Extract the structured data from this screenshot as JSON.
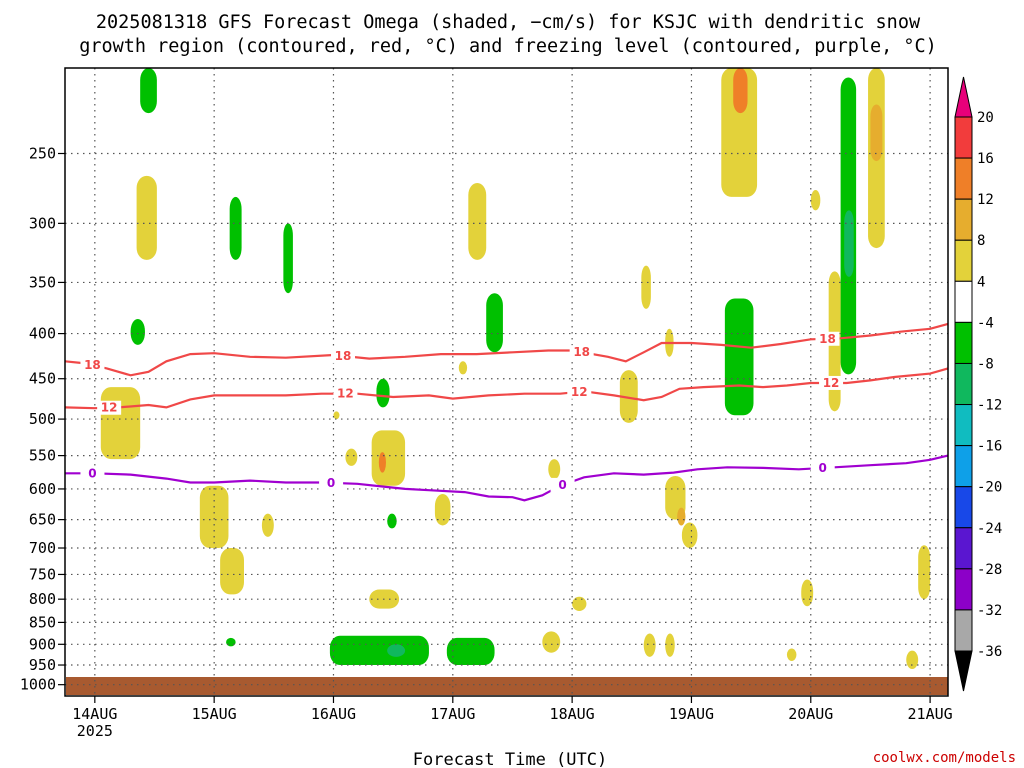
{
  "title_line1": "2025081318 GFS Forecast Omega (shaded, −cm/s) for KSJC with dendritic snow",
  "title_line2": "growth region (contoured, red, °C) and freezing level (contoured, purple, °C)",
  "xlabel": "Forecast Time (UTC)",
  "watermark": "coolwx.com/models",
  "chart_data": {
    "type": "time-height contour",
    "x_ticks": [
      {
        "day": 14,
        "label": "14AUG",
        "sub": "2025"
      },
      {
        "day": 15,
        "label": "15AUG",
        "sub": ""
      },
      {
        "day": 16,
        "label": "16AUG",
        "sub": ""
      },
      {
        "day": 17,
        "label": "17AUG",
        "sub": ""
      },
      {
        "day": 18,
        "label": "18AUG",
        "sub": ""
      },
      {
        "day": 19,
        "label": "19AUG",
        "sub": ""
      },
      {
        "day": 20,
        "label": "20AUG",
        "sub": ""
      },
      {
        "day": 21,
        "label": "21AUG",
        "sub": ""
      }
    ],
    "x_range_days": [
      13.75,
      21.15
    ],
    "y_axis": "pressure (hPa), log scale, inverted",
    "y_range": [
      200,
      1030
    ],
    "y_ticks": [
      250,
      300,
      350,
      400,
      450,
      500,
      550,
      600,
      650,
      700,
      750,
      800,
      850,
      900,
      950,
      1000
    ],
    "grid": true,
    "colorbar": {
      "labels": [
        20,
        16,
        12,
        8,
        4,
        -4,
        -8,
        -12,
        -16,
        -20,
        -24,
        -28,
        -32,
        -36
      ],
      "colors": [
        "#e8007a",
        "#f23c3c",
        "#ef7f28",
        "#e6ad2e",
        "#e3d23a",
        "#ffffff",
        "#00c000",
        "#10b85e",
        "#10bcc0",
        "#0ea0e8",
        "#1848e8",
        "#5a16d0",
        "#8c00c8",
        "#a8a8a8",
        "#000000"
      ]
    },
    "contours": [
      {
        "name": "-18",
        "color": "#f04848",
        "label": "18",
        "points": [
          [
            13.75,
            430
          ],
          [
            13.9,
            432
          ],
          [
            14.1,
            438
          ],
          [
            14.3,
            446
          ],
          [
            14.45,
            442
          ],
          [
            14.6,
            430
          ],
          [
            14.8,
            422
          ],
          [
            15.0,
            421
          ],
          [
            15.3,
            425
          ],
          [
            15.6,
            426
          ],
          [
            16.0,
            423
          ],
          [
            16.3,
            427
          ],
          [
            16.6,
            425
          ],
          [
            16.9,
            422
          ],
          [
            17.2,
            422
          ],
          [
            17.5,
            420
          ],
          [
            17.8,
            418
          ],
          [
            18.0,
            418
          ],
          [
            18.3,
            425
          ],
          [
            18.45,
            430
          ],
          [
            18.6,
            420
          ],
          [
            18.75,
            410
          ],
          [
            19.0,
            410
          ],
          [
            19.25,
            412
          ],
          [
            19.5,
            415
          ],
          [
            19.75,
            411
          ],
          [
            20.0,
            406
          ],
          [
            20.25,
            405
          ],
          [
            20.5,
            402
          ],
          [
            20.75,
            398
          ],
          [
            21.0,
            395
          ],
          [
            21.15,
            390
          ]
        ]
      },
      {
        "name": "-12",
        "color": "#f04848",
        "label": "12",
        "points": [
          [
            13.75,
            485
          ],
          [
            14.0,
            486
          ],
          [
            14.2,
            485
          ],
          [
            14.45,
            482
          ],
          [
            14.6,
            485
          ],
          [
            14.8,
            475
          ],
          [
            15.0,
            470
          ],
          [
            15.3,
            470
          ],
          [
            15.6,
            470
          ],
          [
            15.9,
            468
          ],
          [
            16.2,
            468
          ],
          [
            16.5,
            472
          ],
          [
            16.8,
            470
          ],
          [
            17.0,
            474
          ],
          [
            17.3,
            470
          ],
          [
            17.6,
            468
          ],
          [
            17.9,
            468
          ],
          [
            18.1,
            465
          ],
          [
            18.35,
            470
          ],
          [
            18.6,
            476
          ],
          [
            18.75,
            472
          ],
          [
            18.9,
            462
          ],
          [
            19.1,
            460
          ],
          [
            19.4,
            458
          ],
          [
            19.6,
            460
          ],
          [
            19.8,
            458
          ],
          [
            20.0,
            455
          ],
          [
            20.3,
            455
          ],
          [
            20.5,
            452
          ],
          [
            20.7,
            448
          ],
          [
            21.0,
            444
          ],
          [
            21.15,
            438
          ]
        ]
      },
      {
        "name": "0",
        "color": "#a000d0",
        "label": "0",
        "points": [
          [
            13.75,
            576
          ],
          [
            14.0,
            576
          ],
          [
            14.3,
            578
          ],
          [
            14.6,
            584
          ],
          [
            14.8,
            590
          ],
          [
            15.0,
            590
          ],
          [
            15.3,
            587
          ],
          [
            15.6,
            590
          ],
          [
            15.9,
            590
          ],
          [
            16.2,
            592
          ],
          [
            16.4,
            596
          ],
          [
            16.6,
            600
          ],
          [
            16.8,
            602
          ],
          [
            17.1,
            605
          ],
          [
            17.3,
            612
          ],
          [
            17.5,
            613
          ],
          [
            17.6,
            618
          ],
          [
            17.75,
            610
          ],
          [
            17.9,
            595
          ],
          [
            18.1,
            582
          ],
          [
            18.35,
            576
          ],
          [
            18.6,
            578
          ],
          [
            18.85,
            575
          ],
          [
            19.05,
            570
          ],
          [
            19.3,
            567
          ],
          [
            19.6,
            568
          ],
          [
            19.9,
            570
          ],
          [
            20.2,
            567
          ],
          [
            20.5,
            564
          ],
          [
            20.8,
            561
          ],
          [
            21.0,
            556
          ],
          [
            21.15,
            550
          ]
        ]
      }
    ],
    "label_positions": [
      {
        "series": "-18",
        "days": [
          13.98,
          16.08,
          18.08,
          20.14
        ]
      },
      {
        "series": "-12",
        "days": [
          14.12,
          16.1,
          18.06,
          20.17
        ]
      },
      {
        "series": "0",
        "days": [
          13.98,
          15.98,
          17.92,
          20.1
        ]
      }
    ],
    "shaded_areas": [
      {
        "color": "#00c000",
        "d": [
          14.38,
          14.52
        ],
        "p": [
          200,
          225
        ]
      },
      {
        "color": "#e3d23a",
        "d": [
          14.35,
          14.52
        ],
        "p": [
          265,
          330
        ]
      },
      {
        "color": "#e3d23a",
        "d": [
          14.05,
          14.38
        ],
        "p": [
          460,
          555
        ]
      },
      {
        "color": "#00c000",
        "d": [
          14.3,
          14.42
        ],
        "p": [
          385,
          412
        ]
      },
      {
        "color": "#e3d23a",
        "d": [
          14.88,
          15.12
        ],
        "p": [
          595,
          700
        ]
      },
      {
        "color": "#e3d23a",
        "d": [
          15.05,
          15.25
        ],
        "p": [
          700,
          790
        ]
      },
      {
        "color": "#00c000",
        "d": [
          15.13,
          15.23
        ],
        "p": [
          280,
          330
        ]
      },
      {
        "color": "#00c000",
        "d": [
          15.58,
          15.66
        ],
        "p": [
          300,
          360
        ]
      },
      {
        "color": "#e3d23a",
        "d": [
          15.4,
          15.5
        ],
        "p": [
          640,
          680
        ]
      },
      {
        "color": "#00c000",
        "d": [
          15.1,
          15.18
        ],
        "p": [
          885,
          905
        ]
      },
      {
        "color": "#e3d23a",
        "d": [
          16.0,
          16.05
        ],
        "p": [
          490,
          500
        ]
      },
      {
        "color": "#e3d23a",
        "d": [
          16.32,
          16.6
        ],
        "p": [
          515,
          595
        ]
      },
      {
        "color": "#ef7f28",
        "d": [
          16.38,
          16.44
        ],
        "p": [
          545,
          575
        ]
      },
      {
        "color": "#00c000",
        "d": [
          16.36,
          16.47
        ],
        "p": [
          450,
          485
        ]
      },
      {
        "color": "#00c000",
        "d": [
          16.45,
          16.53
        ],
        "p": [
          640,
          665
        ]
      },
      {
        "color": "#e3d23a",
        "d": [
          16.3,
          16.55
        ],
        "p": [
          780,
          820
        ]
      },
      {
        "color": "#e3d23a",
        "d": [
          16.85,
          16.98
        ],
        "p": [
          608,
          660
        ]
      },
      {
        "color": "#00c000",
        "d": [
          15.97,
          16.8
        ],
        "p": [
          880,
          950
        ]
      },
      {
        "color": "#10b85e",
        "d": [
          16.45,
          16.6
        ],
        "p": [
          900,
          930
        ]
      },
      {
        "color": "#00c000",
        "d": [
          16.95,
          17.35
        ],
        "p": [
          885,
          950
        ]
      },
      {
        "color": "#e3d23a",
        "d": [
          17.13,
          17.28
        ],
        "p": [
          270,
          330
        ]
      },
      {
        "color": "#00c000",
        "d": [
          17.28,
          17.42
        ],
        "p": [
          360,
          420
        ]
      },
      {
        "color": "#e3d23a",
        "d": [
          17.05,
          17.12
        ],
        "p": [
          430,
          445
        ]
      },
      {
        "color": "#e3d23a",
        "d": [
          16.1,
          16.2
        ],
        "p": [
          540,
          565
        ]
      },
      {
        "color": "#e3d23a",
        "d": [
          17.8,
          17.9
        ],
        "p": [
          555,
          585
        ]
      },
      {
        "color": "#e3d23a",
        "d": [
          18.0,
          18.12
        ],
        "p": [
          795,
          825
        ]
      },
      {
        "color": "#e3d23a",
        "d": [
          17.75,
          17.9
        ],
        "p": [
          870,
          920
        ]
      },
      {
        "color": "#e3d23a",
        "d": [
          18.4,
          18.55
        ],
        "p": [
          440,
          505
        ]
      },
      {
        "color": "#e3d23a",
        "d": [
          18.58,
          18.66
        ],
        "p": [
          335,
          375
        ]
      },
      {
        "color": "#e3d23a",
        "d": [
          18.78,
          18.85
        ],
        "p": [
          395,
          425
        ]
      },
      {
        "color": "#e3d23a",
        "d": [
          18.78,
          18.95
        ],
        "p": [
          580,
          650
        ]
      },
      {
        "color": "#e6ad2e",
        "d": [
          18.88,
          18.95
        ],
        "p": [
          630,
          660
        ]
      },
      {
        "color": "#e3d23a",
        "d": [
          18.92,
          19.05
        ],
        "p": [
          655,
          700
        ]
      },
      {
        "color": "#e3d23a",
        "d": [
          18.78,
          18.86
        ],
        "p": [
          875,
          930
        ]
      },
      {
        "color": "#00c000",
        "d": [
          19.28,
          19.52
        ],
        "p": [
          365,
          495
        ]
      },
      {
        "color": "#e3d23a",
        "d": [
          19.25,
          19.55
        ],
        "p": [
          200,
          280
        ]
      },
      {
        "color": "#ef7f28",
        "d": [
          19.35,
          19.47
        ],
        "p": [
          200,
          225
        ]
      },
      {
        "color": "#e3d23a",
        "d": [
          20.15,
          20.25
        ],
        "p": [
          340,
          490
        ]
      },
      {
        "color": "#e3d23a",
        "d": [
          20.0,
          20.08
        ],
        "p": [
          275,
          290
        ]
      },
      {
        "color": "#00c000",
        "d": [
          20.25,
          20.38
        ],
        "p": [
          205,
          445
        ]
      },
      {
        "color": "#10b85e",
        "d": [
          20.28,
          20.36
        ],
        "p": [
          290,
          345
        ]
      },
      {
        "color": "#e3d23a",
        "d": [
          20.48,
          20.62
        ],
        "p": [
          200,
          320
        ]
      },
      {
        "color": "#e6ad2e",
        "d": [
          20.5,
          20.6
        ],
        "p": [
          220,
          255
        ]
      },
      {
        "color": "#e3d23a",
        "d": [
          19.92,
          20.02
        ],
        "p": [
          760,
          815
        ]
      },
      {
        "color": "#e3d23a",
        "d": [
          19.8,
          19.88
        ],
        "p": [
          910,
          940
        ]
      },
      {
        "color": "#e3d23a",
        "d": [
          20.8,
          20.9
        ],
        "p": [
          915,
          960
        ]
      },
      {
        "color": "#e3d23a",
        "d": [
          20.9,
          21.0
        ],
        "p": [
          695,
          800
        ]
      },
      {
        "color": "#e3d23a",
        "d": [
          18.6,
          18.7
        ],
        "p": [
          875,
          930
        ]
      }
    ]
  }
}
